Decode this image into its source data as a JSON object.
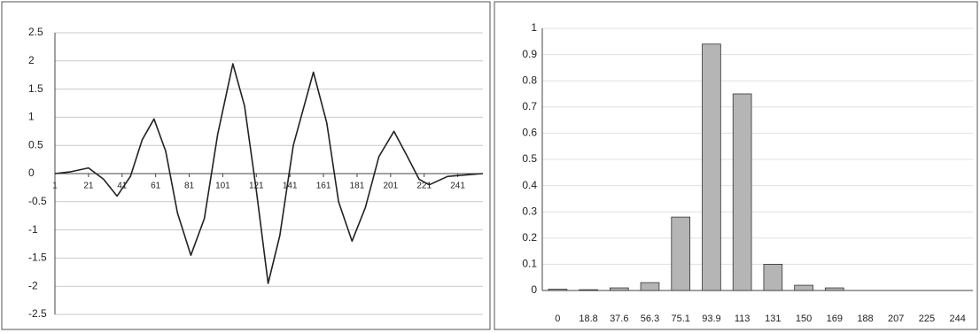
{
  "chart_data": [
    {
      "type": "line",
      "x": [
        1,
        10,
        21,
        30,
        38,
        46,
        53,
        60,
        67,
        74,
        82,
        90,
        98,
        107,
        114,
        121,
        128,
        135,
        143,
        155,
        163,
        170,
        178,
        186,
        194,
        203,
        211,
        218,
        224,
        235,
        256
      ],
      "values": [
        0,
        0.03,
        0.1,
        -0.1,
        -0.4,
        -0.05,
        0.6,
        0.97,
        0.4,
        -0.7,
        -1.45,
        -0.8,
        0.7,
        1.95,
        1.2,
        -0.3,
        -1.95,
        -1.1,
        0.5,
        1.8,
        0.9,
        -0.5,
        -1.2,
        -0.6,
        0.3,
        0.75,
        0.3,
        -0.1,
        -0.2,
        -0.05,
        0
      ],
      "color": "#222222",
      "xlim": [
        1,
        256
      ],
      "xticks": [
        1,
        21,
        41,
        61,
        81,
        101,
        121,
        141,
        161,
        181,
        201,
        221,
        241
      ],
      "ylim": [
        -2.5,
        2.5
      ],
      "yticks": [
        -2.5,
        -2,
        -1.5,
        -1,
        -0.5,
        0,
        0.5,
        1,
        1.5,
        2,
        2.5
      ],
      "grid": true
    },
    {
      "type": "bar",
      "categories": [
        "0",
        "18.8",
        "37.6",
        "56.3",
        "75.1",
        "93.9",
        "113",
        "131",
        "150",
        "169",
        "188",
        "207",
        "225",
        "244"
      ],
      "values": [
        0.005,
        0.003,
        0.01,
        0.03,
        0.28,
        0.94,
        0.75,
        0.1,
        0.02,
        0.01,
        0,
        0,
        0,
        0
      ],
      "color": "#b5b5b5",
      "ylim": [
        0,
        1
      ],
      "yticks": [
        0,
        0.1,
        0.2,
        0.3,
        0.4,
        0.5,
        0.6,
        0.7,
        0.8,
        0.9,
        1
      ],
      "grid": true
    }
  ]
}
